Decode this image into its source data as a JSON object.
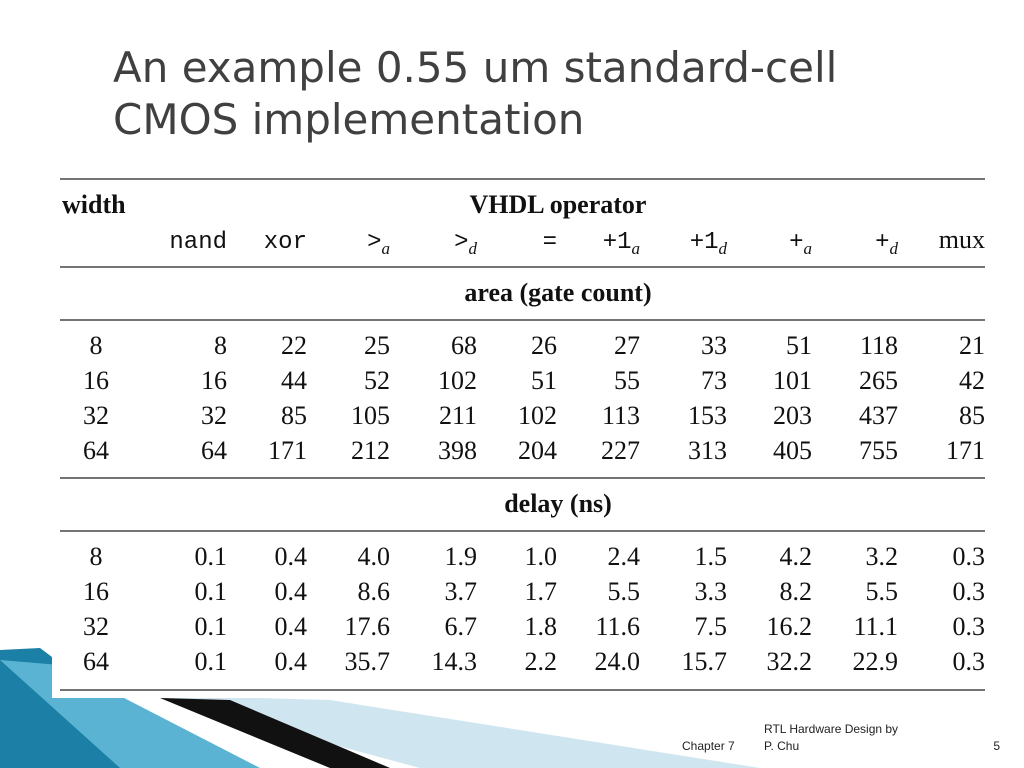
{
  "title": "An example 0.55 um standard-cell CMOS implementation",
  "table": {
    "width_label": "width",
    "group_label": "VHDL operator",
    "operators": [
      {
        "text": "nand"
      },
      {
        "text": "xor"
      },
      {
        "text": ">",
        "sub": "a"
      },
      {
        "text": ">",
        "sub": "d"
      },
      {
        "text": "="
      },
      {
        "text": "+1",
        "sub": "a"
      },
      {
        "text": "+1",
        "sub": "d"
      },
      {
        "text": "+",
        "sub": "a"
      },
      {
        "text": "+",
        "sub": "d"
      },
      {
        "text": "mux"
      }
    ],
    "sections": [
      {
        "label": "area (gate count)",
        "rows": [
          [
            "8",
            "8",
            "22",
            "25",
            "68",
            "26",
            "27",
            "33",
            "51",
            "118",
            "21"
          ],
          [
            "16",
            "16",
            "44",
            "52",
            "102",
            "51",
            "55",
            "73",
            "101",
            "265",
            "42"
          ],
          [
            "32",
            "32",
            "85",
            "105",
            "211",
            "102",
            "113",
            "153",
            "203",
            "437",
            "85"
          ],
          [
            "64",
            "64",
            "171",
            "212",
            "398",
            "204",
            "227",
            "313",
            "405",
            "755",
            "171"
          ]
        ]
      },
      {
        "label": "delay (ns)",
        "rows": [
          [
            "8",
            "0.1",
            "0.4",
            "4.0",
            "1.9",
            "1.0",
            "2.4",
            "1.5",
            "4.2",
            "3.2",
            "0.3"
          ],
          [
            "16",
            "0.1",
            "0.4",
            "8.6",
            "3.7",
            "1.7",
            "5.5",
            "3.3",
            "8.2",
            "5.5",
            "0.3"
          ],
          [
            "32",
            "0.1",
            "0.4",
            "17.6",
            "6.7",
            "1.8",
            "11.6",
            "7.5",
            "16.2",
            "11.1",
            "0.3"
          ],
          [
            "64",
            "0.1",
            "0.4",
            "35.7",
            "14.3",
            "2.2",
            "24.0",
            "15.7",
            "32.2",
            "22.9",
            "0.3"
          ]
        ]
      }
    ]
  },
  "footer": {
    "chapter": "Chapter 7",
    "book": "RTL Hardware Design by P. Chu",
    "page": "5"
  }
}
